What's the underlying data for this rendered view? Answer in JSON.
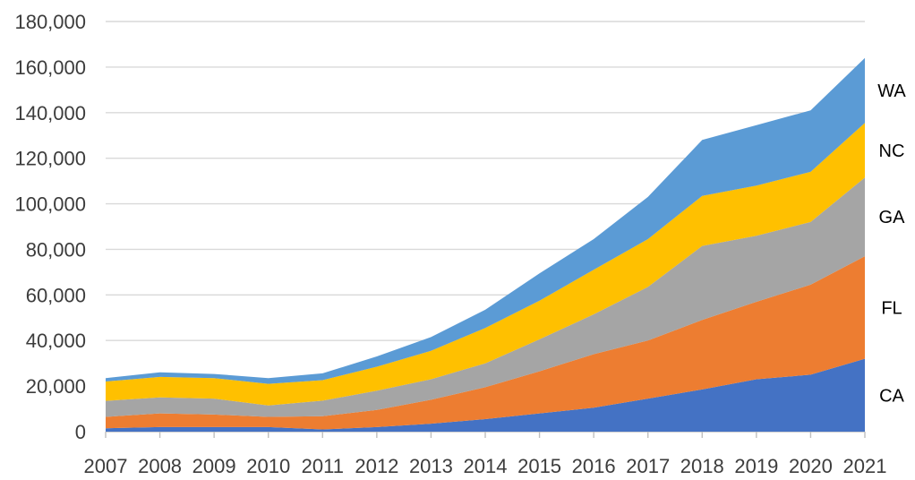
{
  "chart_data": {
    "type": "area",
    "stacked": true,
    "title": "",
    "xlabel": "",
    "ylabel": "",
    "x": [
      "2007",
      "2008",
      "2009",
      "2010",
      "2011",
      "2012",
      "2013",
      "2014",
      "2015",
      "2016",
      "2017",
      "2018",
      "2019",
      "2020",
      "2021"
    ],
    "ylim": [
      0,
      180000
    ],
    "y_ticks": [
      "0",
      "20,000",
      "40,000",
      "60,000",
      "80,000",
      "100,000",
      "120,000",
      "140,000",
      "160,000",
      "180,000"
    ],
    "y_tick_values": [
      0,
      20000,
      40000,
      60000,
      80000,
      100000,
      120000,
      140000,
      160000,
      180000
    ],
    "grid": true,
    "legend": "inline labels at right",
    "series": [
      {
        "name": "CA",
        "color": "#4472C4",
        "values": [
          1500,
          2000,
          2000,
          2000,
          1000,
          2000,
          3500,
          5500,
          8000,
          10500,
          14500,
          18500,
          23000,
          25000,
          32000
        ]
      },
      {
        "name": "FL",
        "color": "#ED7D31",
        "values": [
          5000,
          6000,
          5500,
          4500,
          5800,
          7500,
          10500,
          14000,
          18500,
          23500,
          25500,
          30500,
          34000,
          39500,
          45000
        ]
      },
      {
        "name": "GA",
        "color": "#A5A5A5",
        "values": [
          7000,
          7000,
          7000,
          5000,
          6800,
          8500,
          9000,
          10500,
          14000,
          17500,
          23500,
          32500,
          29000,
          27500,
          34500
        ]
      },
      {
        "name": "NC",
        "color": "#FFC000",
        "values": [
          8500,
          9000,
          9000,
          9500,
          9000,
          10500,
          12500,
          15500,
          17000,
          19500,
          21000,
          22000,
          22000,
          22000,
          24000
        ]
      },
      {
        "name": "WA",
        "color": "#5B9BD5",
        "values": [
          1500,
          2000,
          1800,
          2500,
          3000,
          4500,
          6000,
          8000,
          12000,
          13500,
          18500,
          24500,
          26500,
          27000,
          28500
        ]
      }
    ]
  }
}
